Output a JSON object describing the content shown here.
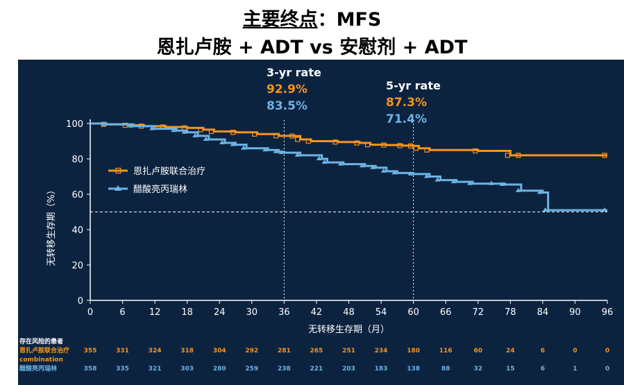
{
  "title": {
    "line1_main": "主要终点",
    "line1_suffix": "：MFS",
    "line2": "恩扎卢胺 + ADT vs 安慰剂 + ADT"
  },
  "colors": {
    "combination": "#f7941d",
    "placebo": "#6cb4e4",
    "panel": "#0c2340"
  },
  "rates": [
    {
      "heading": "3-yr rate",
      "combination": "92.9%",
      "placebo": "83.5%"
    },
    {
      "heading": "5-yr rate",
      "combination": "87.3%",
      "placebo": "71.4%"
    }
  ],
  "chart_data": {
    "type": "line",
    "subtype": "kaplan-meier step",
    "xlabel": "无转移生存期（月）",
    "ylabel": "无转移生存期（%）",
    "xlim": [
      0,
      96
    ],
    "ylim": [
      0,
      100
    ],
    "xticks": [
      0,
      6,
      12,
      18,
      24,
      30,
      36,
      42,
      48,
      54,
      60,
      66,
      72,
      78,
      84,
      90,
      96
    ],
    "yticks": [
      0,
      20,
      40,
      60,
      80,
      100
    ],
    "reference_lines": {
      "horizontal_y": 50,
      "vertical_x": [
        36,
        60
      ]
    },
    "legend_position": "left-middle",
    "series": [
      {
        "name": "恩扎卢胺联合治疗",
        "steps": [
          [
            0,
            100
          ],
          [
            3,
            99.5
          ],
          [
            7,
            99
          ],
          [
            10,
            98.5
          ],
          [
            14,
            98
          ],
          [
            18,
            97.5
          ],
          [
            21,
            96.5
          ],
          [
            23,
            95.5
          ],
          [
            27,
            95
          ],
          [
            31,
            94
          ],
          [
            35,
            93
          ],
          [
            38,
            92.9
          ],
          [
            39,
            91
          ],
          [
            41,
            90
          ],
          [
            46,
            89.5
          ],
          [
            50,
            89
          ],
          [
            52,
            88
          ],
          [
            55,
            87.8
          ],
          [
            58,
            87.5
          ],
          [
            60,
            87.3
          ],
          [
            61,
            86
          ],
          [
            63,
            85
          ],
          [
            72,
            84.5
          ],
          [
            78,
            82
          ],
          [
            80,
            82
          ],
          [
            96,
            82
          ]
        ]
      },
      {
        "name": "醋酸亮丙瑞林",
        "steps": [
          [
            0,
            100
          ],
          [
            3,
            99.5
          ],
          [
            8,
            98.5
          ],
          [
            12,
            97
          ],
          [
            16,
            96
          ],
          [
            18,
            95
          ],
          [
            20,
            93
          ],
          [
            22,
            91
          ],
          [
            25,
            89
          ],
          [
            27,
            88
          ],
          [
            29,
            86
          ],
          [
            33,
            85
          ],
          [
            35,
            84
          ],
          [
            36,
            83.5
          ],
          [
            39,
            82
          ],
          [
            43,
            80
          ],
          [
            44,
            78
          ],
          [
            47,
            77
          ],
          [
            51,
            76
          ],
          [
            53,
            75
          ],
          [
            55,
            73
          ],
          [
            57,
            72
          ],
          [
            60,
            71.4
          ],
          [
            63,
            70
          ],
          [
            65,
            68
          ],
          [
            68,
            67
          ],
          [
            71,
            66
          ],
          [
            75,
            66
          ],
          [
            77,
            65.5
          ],
          [
            80,
            62
          ],
          [
            84,
            61
          ],
          [
            85,
            51
          ],
          [
            96,
            51
          ]
        ]
      }
    ],
    "risk_table": {
      "header": "存在风险的患者",
      "rows": [
        {
          "label": "恩扎卢胺联合治疗",
          "sublabel": "combination",
          "values": [
            "355",
            "331",
            "324",
            "318",
            "304",
            "292",
            "281",
            "265",
            "251",
            "234",
            "180",
            "116",
            "60",
            "24",
            "6",
            "0",
            "0"
          ]
        },
        {
          "label": "醋酸亮丙瑞林",
          "values": [
            "358",
            "335",
            "321",
            "303",
            "280",
            "259",
            "238",
            "221",
            "203",
            "183",
            "138",
            "88",
            "32",
            "15",
            "6",
            "1",
            "0"
          ]
        }
      ]
    }
  }
}
